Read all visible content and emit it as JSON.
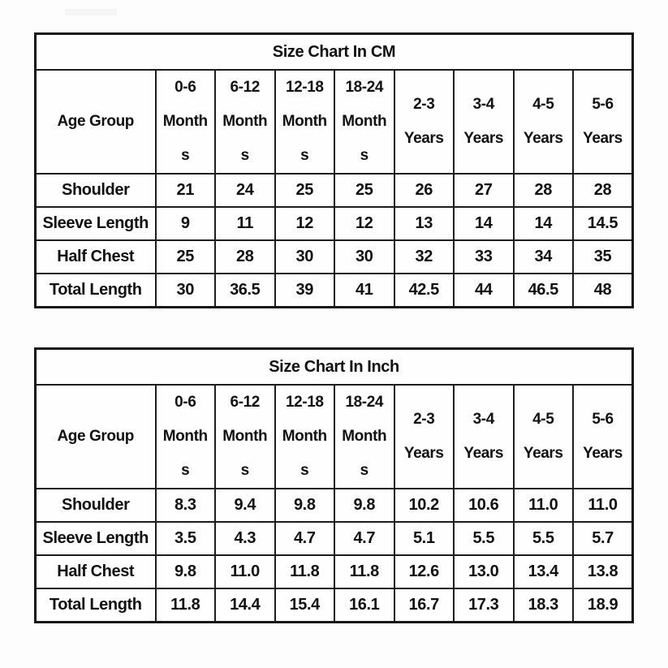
{
  "page": {
    "background_color": "#fdfdfd",
    "border_color": "#1d1d1d",
    "text_color": "#111111"
  },
  "tables": [
    {
      "title": "Size Chart In CM",
      "age_group_label": "Age Group",
      "columns": [
        "0-6\nMonth\ns",
        "6-12\nMonth\ns",
        "12-18\nMonth\ns",
        "18-24\nMonth\ns",
        "2-3\nYears",
        "3-4\nYears",
        "4-5\nYears",
        "5-6\nYears"
      ],
      "rows": [
        {
          "label": "Shoulder",
          "values": [
            "21",
            "24",
            "25",
            "25",
            "26",
            "27",
            "28",
            "28"
          ]
        },
        {
          "label": "Sleeve Length",
          "values": [
            "9",
            "11",
            "12",
            "12",
            "13",
            "14",
            "14",
            "14.5"
          ]
        },
        {
          "label": "Half Chest",
          "values": [
            "25",
            "28",
            "30",
            "30",
            "32",
            "33",
            "34",
            "35"
          ]
        },
        {
          "label": "Total Length",
          "values": [
            "30",
            "36.5",
            "39",
            "41",
            "42.5",
            "44",
            "46.5",
            "48"
          ]
        }
      ]
    },
    {
      "title": "Size Chart In Inch",
      "age_group_label": "Age Group",
      "columns": [
        "0-6\nMonth\ns",
        "6-12\nMonth\ns",
        "12-18\nMonth\ns",
        "18-24\nMonth\ns",
        "2-3\nYears",
        "3-4\nYears",
        "4-5\nYears",
        "5-6\nYears"
      ],
      "rows": [
        {
          "label": "Shoulder",
          "values": [
            "8.3",
            "9.4",
            "9.8",
            "9.8",
            "10.2",
            "10.6",
            "11.0",
            "11.0"
          ]
        },
        {
          "label": "Sleeve Length",
          "values": [
            "3.5",
            "4.3",
            "4.7",
            "4.7",
            "5.1",
            "5.5",
            "5.5",
            "5.7"
          ]
        },
        {
          "label": "Half Chest",
          "values": [
            "9.8",
            "11.0",
            "11.8",
            "11.8",
            "12.6",
            "13.0",
            "13.4",
            "13.8"
          ]
        },
        {
          "label": "Total Length",
          "values": [
            "11.8",
            "14.4",
            "15.4",
            "16.1",
            "16.7",
            "17.3",
            "18.3",
            "18.9"
          ]
        }
      ]
    }
  ]
}
